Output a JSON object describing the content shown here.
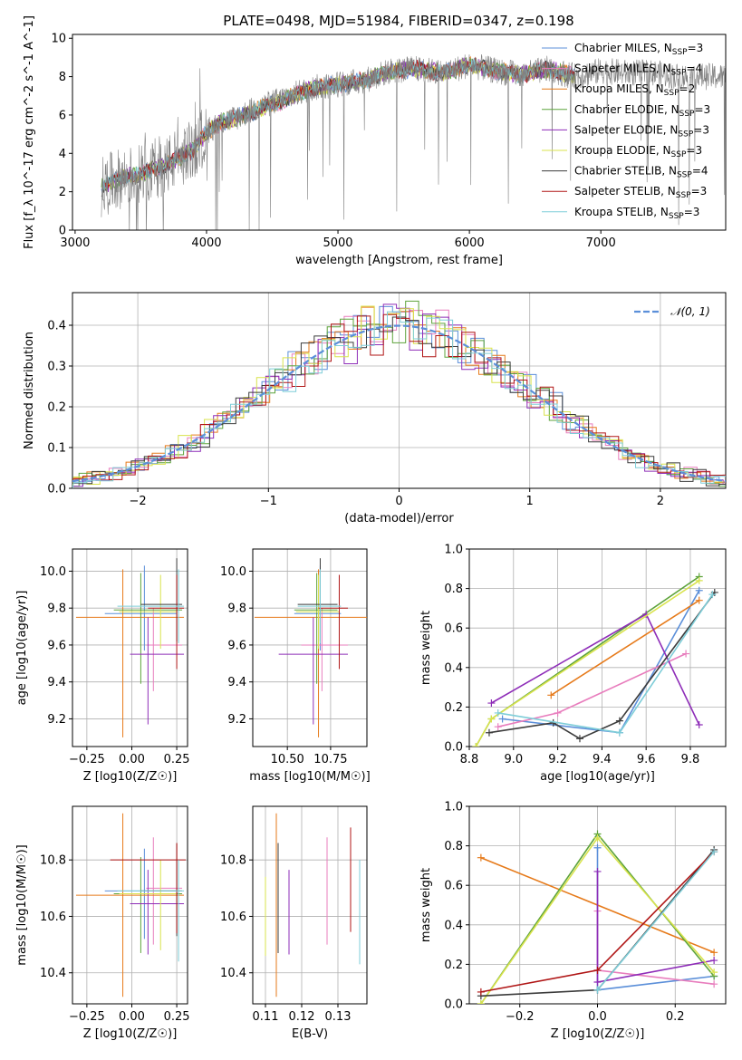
{
  "figure_title": "PLATE=0498, MJD=51984, FIBERID=0347, z=0.198",
  "colors": {
    "Chabrier MILES": "#5b8fd9",
    "Salpeter MILES": "#e87dbd",
    "Kroupa MILES": "#e67a1a",
    "Chabrier ELODIE": "#5da33b",
    "Salpeter ELODIE": "#8e2db8",
    "Kroupa ELODIE": "#d9e34d",
    "Chabrier STELIB": "#3c3c3c",
    "Salpeter STELIB": "#b01616",
    "Kroupa STELIB": "#7ecdd8",
    "data": "#808080",
    "normal": "#5b8fd9",
    "grid": "#b0b0b0"
  },
  "chart_data": [
    {
      "type": "line",
      "id": "spectrum",
      "xlabel": "wavelength [Angstrom, rest frame]",
      "ylabel": "Flux [f_λ 10^-17 erg cm^-2 s^-1 A^-1]",
      "xlim": [
        2980,
        7950
      ],
      "ylim": [
        0,
        10.2
      ],
      "xticks": [
        3000,
        4000,
        5000,
        6000,
        7000
      ],
      "yticks": [
        0,
        2,
        4,
        6,
        8,
        10
      ],
      "grid": false,
      "legend_position": "top-right",
      "legend": [
        {
          "name": "Chabrier MILES",
          "nssp": "3"
        },
        {
          "name": "Salpeter MILES",
          "nssp": "4"
        },
        {
          "name": "Kroupa MILES",
          "nssp": "2"
        },
        {
          "name": "Chabrier ELODIE",
          "nssp": "3"
        },
        {
          "name": "Salpeter ELODIE",
          "nssp": "3"
        },
        {
          "name": "Kroupa ELODIE",
          "nssp": "3"
        },
        {
          "name": "Chabrier STELIB",
          "nssp": "4"
        },
        {
          "name": "Salpeter STELIB",
          "nssp": "3"
        },
        {
          "name": "Kroupa STELIB",
          "nssp": "3"
        }
      ],
      "data_envelope": {
        "x": [
          3200,
          3300,
          3400,
          3500,
          3600,
          3700,
          3800,
          3900,
          4000,
          4100,
          4200,
          4400,
          4600,
          4800,
          5000,
          5200,
          5400,
          5600,
          5800,
          6000,
          6200,
          6400,
          6600,
          6800,
          7000,
          7200,
          7400,
          7600,
          7800,
          7950
        ],
        "y": [
          2.2,
          2.6,
          2.8,
          2.9,
          3.2,
          3.4,
          3.8,
          4.2,
          5.1,
          5.6,
          5.8,
          6.4,
          6.9,
          7.4,
          7.6,
          7.8,
          8.3,
          8.4,
          8.2,
          8.6,
          8.3,
          8.1,
          8.4,
          8.0,
          8.3,
          8.2,
          8.2,
          8.0,
          8.0,
          8.0
        ]
      },
      "model_envelope": {
        "x": [
          3200,
          3300,
          3400,
          3500,
          3600,
          3700,
          3800,
          3900,
          4000,
          4100,
          4200,
          4400,
          4600,
          4800,
          5000,
          5200,
          5400,
          5600,
          5800,
          6000,
          6200,
          6400,
          6600,
          6800
        ],
        "y": [
          2.2,
          2.6,
          2.8,
          2.9,
          3.2,
          3.4,
          3.8,
          4.2,
          5.1,
          5.6,
          5.8,
          6.3,
          6.8,
          7.4,
          7.6,
          7.8,
          8.3,
          8.4,
          8.2,
          8.6,
          8.3,
          8.1,
          8.4,
          8.0
        ]
      }
    },
    {
      "type": "line",
      "id": "residuals",
      "xlabel": "(data-model)/error",
      "ylabel": "Normed distribution",
      "xlim": [
        -2.5,
        2.5
      ],
      "ylim": [
        0,
        0.48
      ],
      "xticks": [
        -2,
        -1,
        0,
        1,
        2
      ],
      "yticks": [
        0.0,
        0.1,
        0.2,
        0.3,
        0.4
      ],
      "grid": true,
      "legend_position": "top-right",
      "legend": [
        {
          "name": "𝒩(0, 1)"
        }
      ]
    },
    {
      "type": "scatter",
      "id": "age-vs-Z",
      "xlabel": "Z [log10(Z/Z☉)]",
      "ylabel": "age [log10(age/yr)]",
      "xlim": [
        -0.33,
        0.31
      ],
      "ylim": [
        9.05,
        10.12
      ],
      "xticks": [
        -0.25,
        0.0,
        0.25
      ],
      "yticks": [
        9.2,
        9.4,
        9.6,
        9.8,
        10.0
      ],
      "grid": true,
      "points": [
        {
          "model": "Chabrier MILES",
          "x": 0.07,
          "xerr": [
            0.22,
            0.18
          ],
          "y": 9.77,
          "yerr": [
            0.2,
            0.26
          ]
        },
        {
          "model": "Salpeter MILES",
          "x": 0.12,
          "xerr": [
            0.04,
            0.16
          ],
          "y": 9.6,
          "yerr": [
            0.25,
            0.2
          ]
        },
        {
          "model": "Kroupa MILES",
          "x": -0.05,
          "xerr": [
            0.26,
            0.34
          ],
          "y": 9.75,
          "yerr": [
            0.65,
            0.26
          ]
        },
        {
          "model": "Chabrier ELODIE",
          "x": 0.05,
          "xerr": [
            0.15,
            0.23
          ],
          "y": 9.79,
          "yerr": [
            0.4,
            0.2
          ]
        },
        {
          "model": "Salpeter ELODIE",
          "x": 0.09,
          "xerr": [
            0.1,
            0.2
          ],
          "y": 9.55,
          "yerr": [
            0.38,
            0.2
          ]
        },
        {
          "model": "Kroupa ELODIE",
          "x": 0.16,
          "xerr": [
            0.23,
            0.09
          ],
          "y": 9.78,
          "yerr": [
            0.2,
            0.2
          ]
        },
        {
          "model": "Chabrier STELIB",
          "x": 0.25,
          "xerr": [
            0.2,
            0.03
          ],
          "y": 9.82,
          "yerr": [
            0.2,
            0.25
          ]
        },
        {
          "model": "Salpeter STELIB",
          "x": 0.25,
          "xerr": [
            0.16,
            0.04
          ],
          "y": 9.8,
          "yerr": [
            0.33,
            0.18
          ]
        },
        {
          "model": "Kroupa STELIB",
          "x": 0.26,
          "xerr": [
            0.34,
            0.03
          ],
          "y": 9.81,
          "yerr": [
            0.2,
            0.2
          ]
        }
      ]
    },
    {
      "type": "scatter",
      "id": "age-vs-mass",
      "xlabel": "mass [log10(M/M☉)]",
      "ylabel": "",
      "xlim": [
        10.3,
        10.96
      ],
      "ylim": [
        9.05,
        10.12
      ],
      "xticks": [
        10.5,
        10.75
      ],
      "yticks": [
        9.2,
        9.4,
        9.6,
        9.8,
        10.0
      ],
      "grid": true,
      "points": [
        {
          "model": "Chabrier MILES",
          "x": 10.69,
          "xerr": [
            0.15,
            0.12
          ],
          "y": 9.77,
          "yerr": [
            0.2,
            0.26
          ]
        },
        {
          "model": "Salpeter MILES",
          "x": 10.7,
          "xerr": [
            0.12,
            0.15
          ],
          "y": 9.6,
          "yerr": [
            0.25,
            0.2
          ]
        },
        {
          "model": "Kroupa MILES",
          "x": 10.68,
          "xerr": [
            0.37,
            0.29
          ],
          "y": 9.75,
          "yerr": [
            0.65,
            0.26
          ]
        },
        {
          "model": "Chabrier ELODIE",
          "x": 10.67,
          "xerr": [
            0.13,
            0.12
          ],
          "y": 9.79,
          "yerr": [
            0.4,
            0.2
          ]
        },
        {
          "model": "Salpeter ELODIE",
          "x": 10.65,
          "xerr": [
            0.2,
            0.2
          ],
          "y": 9.55,
          "yerr": [
            0.38,
            0.2
          ]
        },
        {
          "model": "Kroupa ELODIE",
          "x": 10.68,
          "xerr": [
            0.13,
            0.12
          ],
          "y": 9.78,
          "yerr": [
            0.2,
            0.2
          ]
        },
        {
          "model": "Chabrier STELIB",
          "x": 10.69,
          "xerr": [
            0.13,
            0.1
          ],
          "y": 9.82,
          "yerr": [
            0.2,
            0.25
          ]
        },
        {
          "model": "Salpeter STELIB",
          "x": 10.8,
          "xerr": [
            0.12,
            0.05
          ],
          "y": 9.8,
          "yerr": [
            0.33,
            0.18
          ]
        },
        {
          "model": "Kroupa STELIB",
          "x": 10.69,
          "xerr": [
            0.13,
            0.12
          ],
          "y": 9.81,
          "yerr": [
            0.2,
            0.2
          ]
        }
      ]
    },
    {
      "type": "line",
      "id": "weight-vs-age",
      "xlabel": "age [log10(age/yr)]",
      "ylabel": "mass weight",
      "xlim": [
        8.8,
        9.96
      ],
      "ylim": [
        0,
        1.0
      ],
      "xticks": [
        8.8,
        9.0,
        9.2,
        9.4,
        9.6,
        9.8
      ],
      "yticks": [
        0.0,
        0.2,
        0.4,
        0.6,
        0.8,
        1.0
      ],
      "grid": true,
      "series": [
        {
          "model": "Chabrier MILES",
          "x": [
            8.95,
            9.48,
            9.84
          ],
          "y": [
            0.14,
            0.07,
            0.79
          ]
        },
        {
          "model": "Salpeter MILES",
          "x": [
            8.93,
            9.2,
            9.78
          ],
          "y": [
            0.1,
            0.17,
            0.47
          ]
        },
        {
          "model": "Kroupa MILES",
          "x": [
            9.17,
            9.84
          ],
          "y": [
            0.26,
            0.74
          ]
        },
        {
          "model": "Chabrier ELODIE",
          "x": [
            8.83,
            8.9,
            9.84
          ],
          "y": [
            0.0,
            0.14,
            0.86
          ]
        },
        {
          "model": "Salpeter ELODIE",
          "x": [
            8.9,
            9.6,
            9.84
          ],
          "y": [
            0.22,
            0.67,
            0.11
          ]
        },
        {
          "model": "Kroupa ELODIE",
          "x": [
            8.83,
            8.9,
            9.84
          ],
          "y": [
            0.0,
            0.14,
            0.84
          ]
        },
        {
          "model": "Chabrier STELIB",
          "x": [
            8.89,
            9.18,
            9.3,
            9.48,
            9.91
          ],
          "y": [
            0.07,
            0.12,
            0.04,
            0.13,
            0.78
          ]
        },
        {
          "model": "Salpeter STELIB",
          "x": [],
          "y": []
        },
        {
          "model": "Kroupa STELIB",
          "x": [
            8.93,
            9.48,
            9.9
          ],
          "y": [
            0.17,
            0.07,
            0.77
          ]
        }
      ]
    },
    {
      "type": "scatter",
      "id": "mass-vs-Z",
      "xlabel": "Z [log10(Z/Z☉)]",
      "ylabel": "mass [log10(M/M☉)]",
      "xlim": [
        -0.33,
        0.31
      ],
      "ylim": [
        10.29,
        10.99
      ],
      "xticks": [
        -0.25,
        0.0,
        0.25
      ],
      "yticks": [
        10.4,
        10.6,
        10.8
      ],
      "grid": true,
      "points": [
        {
          "model": "Chabrier MILES",
          "x": 0.07,
          "xerr": [
            0.22,
            0.18
          ],
          "y": 10.69,
          "yerr": [
            0.17,
            0.15
          ]
        },
        {
          "model": "Salpeter MILES",
          "x": 0.12,
          "xerr": [
            0.04,
            0.16
          ],
          "y": 10.7,
          "yerr": [
            0.2,
            0.18
          ]
        },
        {
          "model": "Kroupa MILES",
          "x": -0.05,
          "xerr": [
            0.26,
            0.34
          ],
          "y": 10.675,
          "yerr": [
            0.36,
            0.29
          ]
        },
        {
          "model": "Chabrier ELODIE",
          "x": 0.05,
          "xerr": [
            0.15,
            0.23
          ],
          "y": 10.68,
          "yerr": [
            0.21,
            0.13
          ]
        },
        {
          "model": "Salpeter ELODIE",
          "x": 0.09,
          "xerr": [
            0.1,
            0.2
          ],
          "y": 10.645,
          "yerr": [
            0.18,
            0.12
          ]
        },
        {
          "model": "Kroupa ELODIE",
          "x": 0.16,
          "xerr": [
            0.23,
            0.09
          ],
          "y": 10.68,
          "yerr": [
            0.2,
            0.12
          ]
        },
        {
          "model": "Chabrier STELIB",
          "x": 0.25,
          "xerr": [
            0.2,
            0.03
          ],
          "y": 10.69,
          "yerr": [
            0.16,
            0.17
          ]
        },
        {
          "model": "Salpeter STELIB",
          "x": 0.25,
          "xerr": [
            0.37,
            0.05
          ],
          "y": 10.8,
          "yerr": [
            0.26,
            0.06
          ]
        },
        {
          "model": "Kroupa STELIB",
          "x": 0.26,
          "xerr": [
            0.34,
            0.03
          ],
          "y": 10.69,
          "yerr": [
            0.25,
            0.11
          ]
        }
      ]
    },
    {
      "type": "scatter",
      "id": "mass-vs-EBV",
      "xlabel": "E(B-V)",
      "ylabel": "",
      "xlim": [
        0.1065,
        0.138
      ],
      "ylim": [
        10.29,
        10.99
      ],
      "xticks": [
        0.11,
        0.12,
        0.13
      ],
      "yticks": [
        10.4,
        10.6,
        10.8
      ],
      "grid": true,
      "points": [
        {
          "model": "Chabrier MILES",
          "x": 0.127,
          "y": 10.69,
          "yerr": [
            0.17,
            0.15
          ]
        },
        {
          "model": "Salpeter MILES",
          "x": 0.127,
          "y": 10.7,
          "yerr": [
            0.2,
            0.18
          ]
        },
        {
          "model": "Kroupa MILES",
          "x": 0.113,
          "y": 10.675,
          "yerr": [
            0.36,
            0.29
          ]
        },
        {
          "model": "Chabrier ELODIE",
          "x": 0.11,
          "y": 10.6,
          "yerr": [
            0.14,
            0.13
          ]
        },
        {
          "model": "Salpeter ELODIE",
          "x": 0.1165,
          "y": 10.615,
          "yerr": [
            0.15,
            0.15
          ]
        },
        {
          "model": "Kroupa ELODIE",
          "x": 0.11,
          "y": 10.6,
          "yerr": [
            0.14,
            0.14
          ]
        },
        {
          "model": "Chabrier STELIB",
          "x": 0.1135,
          "y": 10.66,
          "yerr": [
            0.19,
            0.2
          ]
        },
        {
          "model": "Salpeter STELIB",
          "x": 0.1335,
          "y": 10.725,
          "yerr": [
            0.18,
            0.19
          ]
        },
        {
          "model": "Kroupa STELIB",
          "x": 0.136,
          "y": 10.61,
          "yerr": [
            0.18,
            0.19
          ]
        }
      ]
    },
    {
      "type": "line",
      "id": "weight-vs-Z",
      "xlabel": "Z [log10(Z/Z☉)]",
      "ylabel": "mass weight",
      "xlim": [
        -0.33,
        0.33
      ],
      "ylim": [
        0,
        1.0
      ],
      "xticks": [
        -0.2,
        0.0,
        0.2
      ],
      "yticks": [
        0.0,
        0.2,
        0.4,
        0.6,
        0.8,
        1.0
      ],
      "grid": true,
      "series": [
        {
          "model": "Chabrier MILES",
          "x": [
            0.0,
            0.0,
            0.3
          ],
          "y": [
            0.79,
            0.07,
            0.14
          ]
        },
        {
          "model": "Salpeter MILES",
          "x": [
            0.0,
            0.0,
            0.3
          ],
          "y": [
            0.47,
            0.17,
            0.1
          ]
        },
        {
          "model": "Kroupa MILES",
          "x": [
            -0.3,
            0.3
          ],
          "y": [
            0.74,
            0.26
          ]
        },
        {
          "model": "Chabrier ELODIE",
          "x": [
            -0.3,
            0.0,
            0.3
          ],
          "y": [
            0.0,
            0.86,
            0.14
          ]
        },
        {
          "model": "Salpeter ELODIE",
          "x": [
            0.0,
            0.0,
            0.3
          ],
          "y": [
            0.67,
            0.11,
            0.22
          ]
        },
        {
          "model": "Kroupa ELODIE",
          "x": [
            -0.3,
            0.0,
            0.3
          ],
          "y": [
            0.0,
            0.84,
            0.16
          ]
        },
        {
          "model": "Chabrier STELIB",
          "x": [
            -0.3,
            0.0,
            0.3
          ],
          "y": [
            0.04,
            0.07,
            0.78
          ]
        },
        {
          "model": "Salpeter STELIB",
          "x": [
            -0.3,
            0.0,
            0.3
          ],
          "y": [
            0.06,
            0.17,
            0.77
          ]
        },
        {
          "model": "Kroupa STELIB",
          "x": [
            0.0,
            0.3
          ],
          "y": [
            0.07,
            0.77
          ]
        }
      ]
    }
  ]
}
